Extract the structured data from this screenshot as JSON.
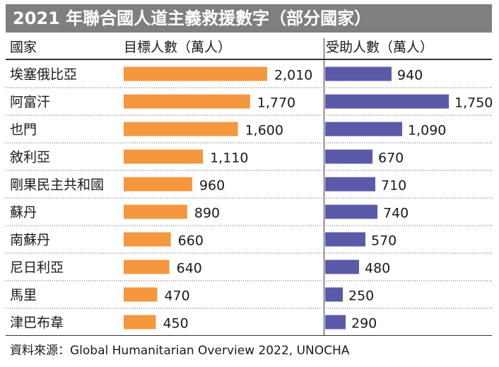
{
  "title": "2021 年聯合國人道主義救援數字（部分國家）",
  "headers": {
    "country": "國家",
    "target": "目標人數（萬人）",
    "assisted": "受助人數（萬人）"
  },
  "source": "資料來源：Global Humanitarian Overview 2022, UNOCHA",
  "colors": {
    "target": "#f5973f",
    "assisted": "#5a5aa8",
    "title_bg": "#7f7f7f"
  },
  "chart_data": {
    "type": "bar",
    "orientation": "horizontal",
    "categories": [
      "埃塞俄比亞",
      "阿富汗",
      "也門",
      "敘利亞",
      "剛果民主共和國",
      "蘇丹",
      "南蘇丹",
      "尼日利亞",
      "馬里",
      "津巴布韋"
    ],
    "series": [
      {
        "name": "目標人數（萬人）",
        "values": [
          2010,
          1770,
          1600,
          1110,
          960,
          890,
          660,
          640,
          470,
          450
        ],
        "labels": [
          "2,010",
          "1,770",
          "1,600",
          "1,110",
          "960",
          "890",
          "660",
          "640",
          "470",
          "450"
        ]
      },
      {
        "name": "受助人數（萬人）",
        "values": [
          940,
          1750,
          1090,
          670,
          710,
          740,
          570,
          480,
          250,
          290
        ],
        "labels": [
          "940",
          "1,750",
          "1,090",
          "670",
          "710",
          "740",
          "570",
          "480",
          "250",
          "290"
        ]
      }
    ],
    "grid": false,
    "legend": "none"
  }
}
